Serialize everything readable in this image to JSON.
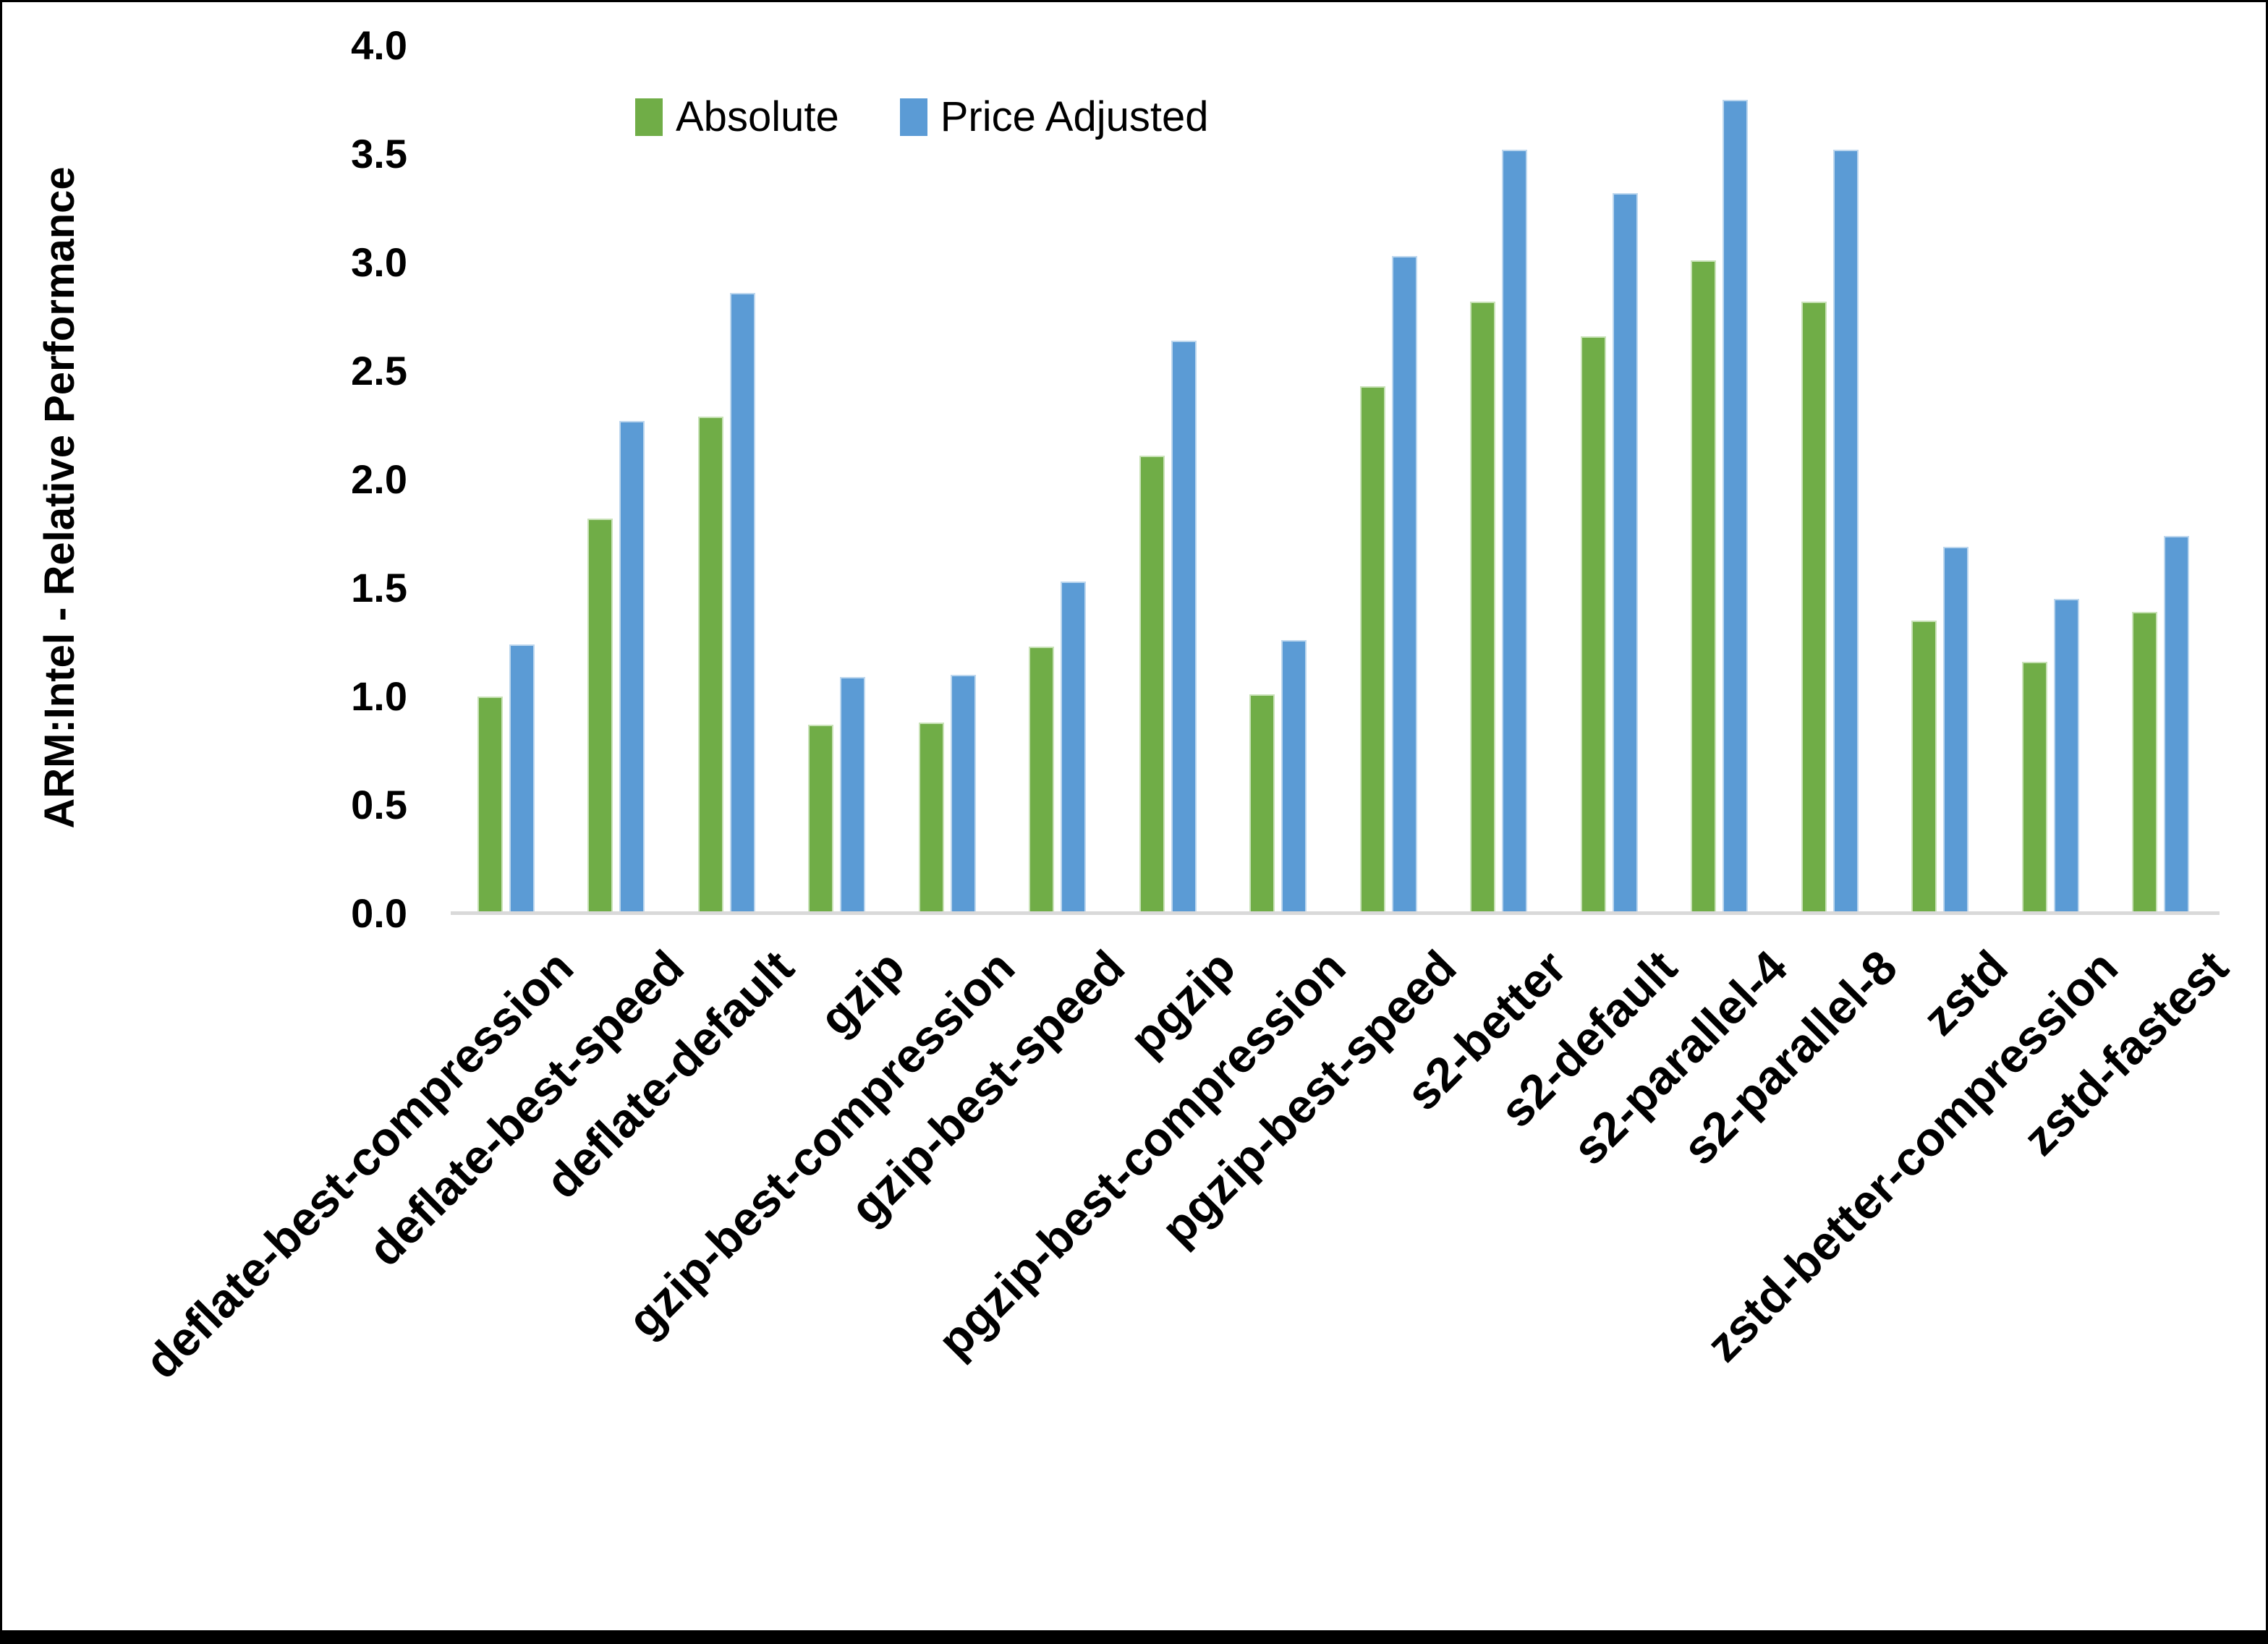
{
  "page": {
    "background": "#ffffff",
    "border_color": "#000000"
  },
  "axis": {
    "line_color": "#d9d9d9"
  },
  "legend": {
    "items": [
      {
        "label": "Absolute",
        "color": "#70AD47"
      },
      {
        "label": "Price Adjusted",
        "color": "#5B9BD5"
      }
    ]
  },
  "chart_data": {
    "type": "bar",
    "title": "",
    "xlabel": "",
    "ylabel": "ARM:Intel - Relative Performance",
    "ylim": [
      0.0,
      4.0
    ],
    "ytick_step": 0.5,
    "ytick_labels": [
      "0.0",
      "0.5",
      "1.0",
      "1.5",
      "2.0",
      "2.5",
      "3.0",
      "3.5",
      "4.0"
    ],
    "grid": false,
    "legend_position": "top",
    "categories": [
      "deflate-best-compression",
      "deflate-best-speed",
      "deflate-default",
      "gzip",
      "gzip-best-compression",
      "gzip-best-speed",
      "pgzip",
      "pgzip-best-compression",
      "pgzip-best-speed",
      "s2-better",
      "s2-default",
      "s2-parallel-4",
      "s2-parallel-8",
      "zstd",
      "zstd-better-compression",
      "zstd-fastest"
    ],
    "series": [
      {
        "name": "Absolute",
        "color": "#70AD47",
        "edge_color": "#c9e2b8",
        "values": [
          1.0,
          1.82,
          2.29,
          0.87,
          0.88,
          1.23,
          2.11,
          1.01,
          2.43,
          2.82,
          2.66,
          3.01,
          2.82,
          1.35,
          1.16,
          1.39
        ]
      },
      {
        "name": "Price Adjusted",
        "color": "#5B9BD5",
        "edge_color": "#bdd7ee",
        "values": [
          1.24,
          2.27,
          2.86,
          1.09,
          1.1,
          1.53,
          2.64,
          1.26,
          3.03,
          3.52,
          3.32,
          3.75,
          3.52,
          1.69,
          1.45,
          1.74
        ]
      }
    ]
  }
}
